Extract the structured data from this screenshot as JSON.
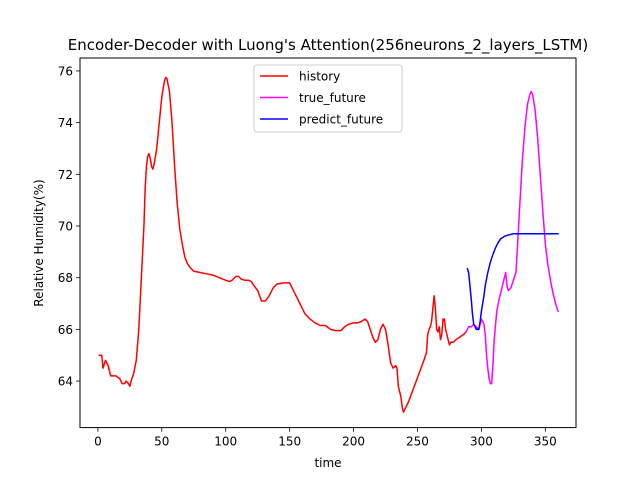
{
  "chart_data": {
    "type": "line",
    "title": "Encoder-Decoder with Luong's Attention(256neurons_2_layers_LSTM)",
    "xlabel": "time",
    "ylabel": "Relative Humidity(%)",
    "xlim": [
      -14,
      374
    ],
    "ylim": [
      62.2,
      76.5
    ],
    "xticks": [
      0,
      50,
      100,
      150,
      200,
      250,
      300,
      350
    ],
    "yticks": [
      64,
      66,
      68,
      70,
      72,
      74,
      76
    ],
    "grid": false,
    "legend_position": "top-center",
    "series": [
      {
        "name": "history",
        "color": "#ff0000",
        "points": [
          [
            1,
            65.0
          ],
          [
            3,
            65.0
          ],
          [
            4,
            64.5
          ],
          [
            6,
            64.8
          ],
          [
            8,
            64.6
          ],
          [
            10,
            64.2
          ],
          [
            12,
            64.2
          ],
          [
            14,
            64.2
          ],
          [
            17,
            64.1
          ],
          [
            19,
            63.9
          ],
          [
            21,
            63.9
          ],
          [
            22,
            64.0
          ],
          [
            24,
            63.9
          ],
          [
            25,
            63.8
          ],
          [
            26,
            64.0
          ],
          [
            28,
            64.3
          ],
          [
            30,
            64.8
          ],
          [
            32,
            66.0
          ],
          [
            34,
            68.0
          ],
          [
            36,
            70.0
          ],
          [
            37,
            71.5
          ],
          [
            38,
            72.3
          ],
          [
            39,
            72.7
          ],
          [
            40,
            72.8
          ],
          [
            41,
            72.6
          ],
          [
            42,
            72.3
          ],
          [
            43,
            72.2
          ],
          [
            44,
            72.4
          ],
          [
            46,
            73.0
          ],
          [
            48,
            74.0
          ],
          [
            50,
            75.0
          ],
          [
            52,
            75.6
          ],
          [
            53,
            75.75
          ],
          [
            54,
            75.7
          ],
          [
            56,
            75.2
          ],
          [
            58,
            74.0
          ],
          [
            60,
            72.3
          ],
          [
            62,
            70.9
          ],
          [
            64,
            69.9
          ],
          [
            66,
            69.3
          ],
          [
            68,
            68.8
          ],
          [
            70,
            68.55
          ],
          [
            72,
            68.4
          ],
          [
            75,
            68.25
          ],
          [
            80,
            68.2
          ],
          [
            85,
            68.15
          ],
          [
            90,
            68.1
          ],
          [
            95,
            68.0
          ],
          [
            100,
            67.9
          ],
          [
            103,
            67.85
          ],
          [
            105,
            67.9
          ],
          [
            108,
            68.05
          ],
          [
            110,
            68.05
          ],
          [
            112,
            67.95
          ],
          [
            115,
            67.9
          ],
          [
            118,
            67.9
          ],
          [
            120,
            67.85
          ],
          [
            122,
            67.7
          ],
          [
            125,
            67.5
          ],
          [
            128,
            67.1
          ],
          [
            131,
            67.1
          ],
          [
            134,
            67.3
          ],
          [
            137,
            67.6
          ],
          [
            140,
            67.75
          ],
          [
            145,
            67.8
          ],
          [
            150,
            67.8
          ],
          [
            152,
            67.6
          ],
          [
            155,
            67.3
          ],
          [
            158,
            67.0
          ],
          [
            162,
            66.6
          ],
          [
            166,
            66.4
          ],
          [
            170,
            66.25
          ],
          [
            174,
            66.15
          ],
          [
            178,
            66.15
          ],
          [
            182,
            66.0
          ],
          [
            186,
            65.95
          ],
          [
            190,
            65.95
          ],
          [
            193,
            66.1
          ],
          [
            196,
            66.2
          ],
          [
            200,
            66.25
          ],
          [
            203,
            66.25
          ],
          [
            206,
            66.3
          ],
          [
            209,
            66.4
          ],
          [
            211,
            66.3
          ],
          [
            213,
            66.0
          ],
          [
            215,
            65.7
          ],
          [
            217,
            65.5
          ],
          [
            219,
            65.6
          ],
          [
            221,
            66.0
          ],
          [
            223,
            66.2
          ],
          [
            225,
            66.0
          ],
          [
            227,
            65.4
          ],
          [
            229,
            64.7
          ],
          [
            231,
            64.5
          ],
          [
            233,
            64.6
          ],
          [
            234,
            64.5
          ],
          [
            235,
            63.8
          ],
          [
            237,
            63.4
          ],
          [
            238,
            63.0
          ],
          [
            239,
            62.8
          ],
          [
            241,
            63.0
          ],
          [
            243,
            63.2
          ],
          [
            246,
            63.6
          ],
          [
            249,
            64.0
          ],
          [
            252,
            64.4
          ],
          [
            255,
            64.8
          ],
          [
            257,
            65.1
          ],
          [
            258,
            65.8
          ],
          [
            259,
            66.0
          ],
          [
            260,
            66.1
          ],
          [
            261,
            66.3
          ],
          [
            262,
            66.8
          ],
          [
            263,
            67.3
          ],
          [
            264,
            66.8
          ],
          [
            265,
            66.0
          ],
          [
            266,
            65.9
          ],
          [
            267,
            66.1
          ],
          [
            268,
            65.6
          ],
          [
            269,
            65.8
          ],
          [
            270,
            66.4
          ],
          [
            271,
            66.4
          ],
          [
            272,
            66.0
          ],
          [
            273,
            65.8
          ],
          [
            274,
            65.6
          ],
          [
            275,
            65.4
          ],
          [
            276,
            65.5
          ],
          [
            278,
            65.5
          ],
          [
            280,
            65.6
          ],
          [
            283,
            65.7
          ],
          [
            286,
            65.8
          ],
          [
            288,
            65.9
          ]
        ]
      },
      {
        "name": "true_future",
        "color": "#ff00ff",
        "points": [
          [
            288,
            65.9
          ],
          [
            290,
            66.1
          ],
          [
            292,
            66.1
          ],
          [
            294,
            66.2
          ],
          [
            296,
            66.1
          ],
          [
            298,
            66.0
          ],
          [
            300,
            66.4
          ],
          [
            302,
            66.2
          ],
          [
            303,
            65.8
          ],
          [
            304,
            65.0
          ],
          [
            305,
            64.5
          ],
          [
            306,
            64.1
          ],
          [
            307,
            63.9
          ],
          [
            308,
            63.9
          ],
          [
            309,
            64.6
          ],
          [
            310,
            65.6
          ],
          [
            312,
            66.7
          ],
          [
            314,
            67.2
          ],
          [
            316,
            67.6
          ],
          [
            318,
            68.0
          ],
          [
            319,
            68.2
          ],
          [
            320,
            67.7
          ],
          [
            321,
            67.5
          ],
          [
            323,
            67.6
          ],
          [
            325,
            67.9
          ],
          [
            327,
            68.2
          ],
          [
            328,
            69.0
          ],
          [
            330,
            70.8
          ],
          [
            332,
            72.5
          ],
          [
            334,
            73.8
          ],
          [
            336,
            74.7
          ],
          [
            338,
            75.1
          ],
          [
            339,
            75.2
          ],
          [
            340,
            75.1
          ],
          [
            342,
            74.5
          ],
          [
            344,
            73.4
          ],
          [
            346,
            72.0
          ],
          [
            348,
            70.6
          ],
          [
            350,
            69.3
          ],
          [
            352,
            68.5
          ],
          [
            354,
            67.9
          ],
          [
            356,
            67.4
          ],
          [
            358,
            67.0
          ],
          [
            360,
            66.7
          ]
        ]
      },
      {
        "name": "predict_future",
        "color": "#0000ff",
        "points": [
          [
            289,
            68.35
          ],
          [
            290,
            68.2
          ],
          [
            291,
            67.7
          ],
          [
            292,
            67.2
          ],
          [
            293,
            66.6
          ],
          [
            294,
            66.2
          ],
          [
            295,
            66.1
          ],
          [
            296,
            66.0
          ],
          [
            297,
            66.0
          ],
          [
            298,
            66.0
          ],
          [
            299,
            66.3
          ],
          [
            300,
            66.7
          ],
          [
            301,
            67.0
          ],
          [
            302,
            67.3
          ],
          [
            303,
            67.7
          ],
          [
            305,
            68.2
          ],
          [
            307,
            68.6
          ],
          [
            309,
            68.9
          ],
          [
            311,
            69.15
          ],
          [
            313,
            69.35
          ],
          [
            315,
            69.5
          ],
          [
            318,
            69.6
          ],
          [
            321,
            69.65
          ],
          [
            325,
            69.7
          ],
          [
            330,
            69.7
          ],
          [
            340,
            69.7
          ],
          [
            350,
            69.7
          ],
          [
            360,
            69.7
          ]
        ]
      }
    ]
  }
}
